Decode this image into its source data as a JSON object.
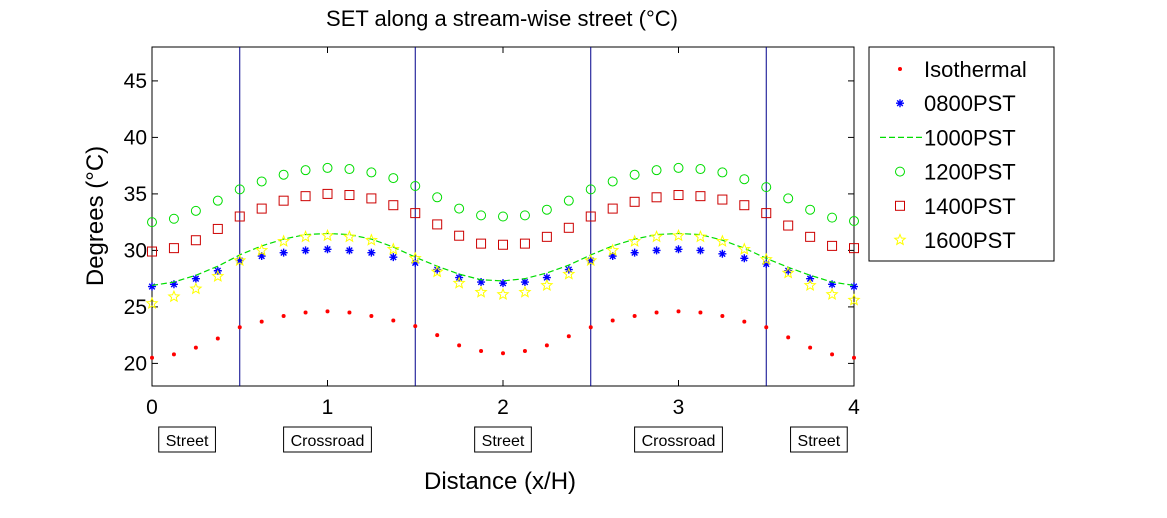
{
  "chart_data": {
    "type": "scatter",
    "title": "SET along a stream-wise street (°C)",
    "xlabel": "Distance (x/H)",
    "ylabel": "Degrees (°C)",
    "xlim": [
      0,
      4
    ],
    "ylim": [
      18,
      48
    ],
    "xticks": [
      0,
      1,
      2,
      3,
      4
    ],
    "yticks": [
      20,
      25,
      30,
      35,
      40,
      45
    ],
    "grid": false,
    "legend_position": "outside-right-top",
    "vertical_lines": [
      0.5,
      1.5,
      2.5,
      3.5
    ],
    "vertical_line_color": "#00008b",
    "regions": [
      {
        "label": "Street",
        "x": 0.2
      },
      {
        "label": "Crossroad",
        "x": 1.0
      },
      {
        "label": "Street",
        "x": 2.0
      },
      {
        "label": "Crossroad",
        "x": 3.0
      },
      {
        "label": "Street",
        "x": 3.8
      }
    ],
    "x": [
      0,
      0.125,
      0.25,
      0.375,
      0.5,
      0.625,
      0.75,
      0.875,
      1.0,
      1.125,
      1.25,
      1.375,
      1.5,
      1.625,
      1.75,
      1.875,
      2.0,
      2.125,
      2.25,
      2.375,
      2.5,
      2.625,
      2.75,
      2.875,
      3.0,
      3.125,
      3.25,
      3.375,
      3.5,
      3.625,
      3.75,
      3.875,
      4.0
    ],
    "series": [
      {
        "name": "Isothermal",
        "marker": "dot",
        "color": "#ff0000",
        "values": [
          20.5,
          20.8,
          21.4,
          22.2,
          23.2,
          23.7,
          24.2,
          24.5,
          24.6,
          24.5,
          24.2,
          23.8,
          23.3,
          22.5,
          21.6,
          21.1,
          20.9,
          21.1,
          21.6,
          22.4,
          23.2,
          23.8,
          24.2,
          24.5,
          24.6,
          24.5,
          24.2,
          23.7,
          23.2,
          22.3,
          21.4,
          20.8,
          20.5
        ]
      },
      {
        "name": "0800PST",
        "marker": "asterisk",
        "color": "#0000ff",
        "values": [
          26.8,
          27.0,
          27.5,
          28.2,
          29.1,
          29.5,
          29.8,
          30.0,
          30.1,
          30.0,
          29.8,
          29.4,
          28.9,
          28.3,
          27.6,
          27.2,
          27.1,
          27.2,
          27.6,
          28.3,
          29.1,
          29.5,
          29.8,
          30.0,
          30.1,
          30.0,
          29.7,
          29.3,
          28.8,
          28.2,
          27.5,
          27.0,
          26.8
        ]
      },
      {
        "name": "1000PST",
        "marker": "dashed-line",
        "color": "#00dd00",
        "values": [
          26.9,
          27.2,
          27.8,
          28.6,
          29.6,
          30.4,
          31.0,
          31.4,
          31.5,
          31.4,
          31.0,
          30.3,
          29.4,
          28.6,
          27.9,
          27.4,
          27.3,
          27.5,
          28.0,
          28.7,
          29.6,
          30.4,
          31.0,
          31.4,
          31.5,
          31.4,
          30.9,
          30.2,
          29.3,
          28.5,
          27.8,
          27.2,
          26.9
        ]
      },
      {
        "name": "1200PST",
        "marker": "circle",
        "color": "#00dd00",
        "values": [
          32.5,
          32.8,
          33.5,
          34.4,
          35.4,
          36.1,
          36.7,
          37.1,
          37.3,
          37.2,
          36.9,
          36.4,
          35.7,
          34.7,
          33.7,
          33.1,
          33.0,
          33.1,
          33.6,
          34.4,
          35.4,
          36.1,
          36.7,
          37.1,
          37.3,
          37.2,
          36.9,
          36.3,
          35.6,
          34.6,
          33.6,
          32.9,
          32.6
        ]
      },
      {
        "name": "1400PST",
        "marker": "square",
        "color": "#cc0000",
        "values": [
          29.9,
          30.2,
          30.9,
          31.9,
          33.0,
          33.7,
          34.4,
          34.8,
          35.0,
          34.9,
          34.6,
          34.0,
          33.3,
          32.3,
          31.3,
          30.6,
          30.5,
          30.6,
          31.2,
          32.0,
          33.0,
          33.7,
          34.3,
          34.7,
          34.9,
          34.8,
          34.5,
          34.0,
          33.3,
          32.2,
          31.2,
          30.4,
          30.2
        ]
      },
      {
        "name": "1600PST",
        "marker": "star",
        "color": "#ffff00",
        "values": [
          25.3,
          25.9,
          26.6,
          27.7,
          29.1,
          30.0,
          30.8,
          31.2,
          31.3,
          31.2,
          30.9,
          30.1,
          29.3,
          28.1,
          27.1,
          26.3,
          26.1,
          26.3,
          26.9,
          27.9,
          29.1,
          30.0,
          30.8,
          31.2,
          31.3,
          31.2,
          30.8,
          30.1,
          29.2,
          28.0,
          26.9,
          26.1,
          25.6
        ]
      }
    ]
  }
}
